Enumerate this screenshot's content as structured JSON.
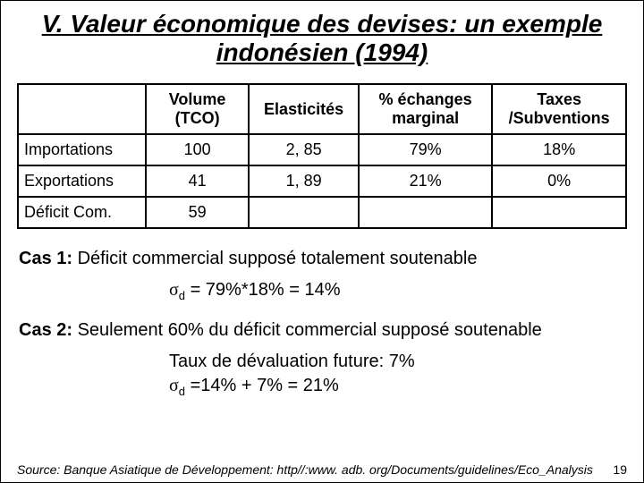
{
  "title": "V. Valeur économique des devises: un exemple indonésien (1994)",
  "table": {
    "columns": {
      "c0": "",
      "c1_line1": "Volume",
      "c1_line2": "(TCO)",
      "c2": "Elasticités",
      "c3_line1": "% échanges",
      "c3_line2": "marginal",
      "c4_line1": "Taxes",
      "c4_line2": "/Subventions"
    },
    "rows": {
      "r0": {
        "label": "Importations",
        "vol": "100",
        "elas": "2, 85",
        "pct": "79%",
        "tax": "18%"
      },
      "r1": {
        "label": "Exportations",
        "vol": "41",
        "elas": "1, 89",
        "pct": "21%",
        "tax": "0%"
      },
      "r2": {
        "label": "Déficit Com.",
        "vol": "59",
        "elas": "",
        "pct": "",
        "tax": ""
      }
    }
  },
  "case1_label": "Cas 1:",
  "case1_text": "  Déficit commercial supposé totalement soutenable",
  "formula1": " = 79%*18% = 14%",
  "sigma": "σ",
  "sub_d": "d",
  "case2_label": "Cas 2:",
  "case2_text": "  Seulement 60% du déficit commercial supposé soutenable",
  "formula2_line1": "Taux de dévaluation future: 7%",
  "formula2_line2": " =14% + 7% = 21%",
  "source": "Source: Banque Asiatique de Développement: http//:www. adb. org/Documents/guidelines/Eco_Analysis",
  "pagenum": "19",
  "colors": {
    "text": "#000000",
    "bg": "#ffffff",
    "border": "#000000"
  }
}
